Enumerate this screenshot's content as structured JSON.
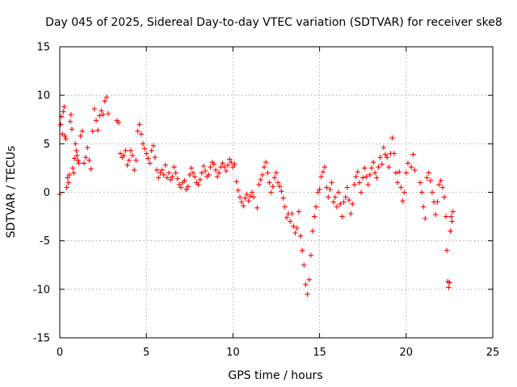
{
  "chart_data": {
    "type": "scatter",
    "title": "Day 045 of 2025, Sidereal Day-to-day VTEC variation (SDTVAR) for receiver ske8",
    "xlabel": "GPS time / hours",
    "ylabel": "SDTVAR / TECUs",
    "xlim": [
      0,
      25
    ],
    "ylim": [
      -15,
      15
    ],
    "xticks": [
      0,
      5,
      10,
      15,
      20,
      25
    ],
    "yticks": [
      -15,
      -10,
      -5,
      0,
      5,
      10,
      15
    ],
    "grid": true,
    "marker": "+",
    "series_color": "#ff0000",
    "series": [
      {
        "name": "SDTVAR",
        "points": [
          [
            0.0,
            -0.2
          ],
          [
            0.05,
            7.0
          ],
          [
            0.1,
            7.8
          ],
          [
            0.15,
            6.0
          ],
          [
            0.2,
            8.3
          ],
          [
            0.25,
            8.8
          ],
          [
            0.3,
            5.8
          ],
          [
            0.35,
            5.5
          ],
          [
            0.4,
            0.5
          ],
          [
            0.45,
            1.5
          ],
          [
            0.5,
            1.0
          ],
          [
            0.55,
            1.8
          ],
          [
            0.6,
            7.3
          ],
          [
            0.65,
            8.0
          ],
          [
            0.7,
            6.5
          ],
          [
            0.75,
            2.5
          ],
          [
            0.8,
            2.0
          ],
          [
            0.85,
            3.5
          ],
          [
            0.9,
            5.0
          ],
          [
            0.95,
            4.3
          ],
          [
            1.0,
            3.8
          ],
          [
            1.05,
            3.3
          ],
          [
            1.1,
            3.0
          ],
          [
            1.2,
            5.8
          ],
          [
            1.3,
            6.3
          ],
          [
            1.4,
            3.0
          ],
          [
            1.5,
            3.6
          ],
          [
            1.6,
            4.6
          ],
          [
            1.7,
            3.3
          ],
          [
            1.8,
            2.4
          ],
          [
            1.9,
            6.3
          ],
          [
            2.0,
            8.6
          ],
          [
            2.1,
            7.4
          ],
          [
            2.2,
            6.4
          ],
          [
            2.3,
            7.9
          ],
          [
            2.4,
            8.4
          ],
          [
            2.5,
            8.0
          ],
          [
            2.6,
            9.4
          ],
          [
            2.7,
            9.8
          ],
          [
            2.8,
            8.1
          ],
          [
            3.3,
            7.4
          ],
          [
            3.4,
            7.2
          ],
          [
            3.5,
            4.0
          ],
          [
            3.6,
            3.6
          ],
          [
            3.7,
            3.8
          ],
          [
            3.8,
            4.3
          ],
          [
            3.9,
            2.8
          ],
          [
            4.0,
            3.3
          ],
          [
            4.1,
            4.3
          ],
          [
            4.2,
            3.8
          ],
          [
            4.3,
            2.3
          ],
          [
            4.4,
            3.3
          ],
          [
            4.5,
            6.3
          ],
          [
            4.6,
            7.0
          ],
          [
            4.7,
            6.0
          ],
          [
            4.8,
            5.0
          ],
          [
            4.9,
            4.5
          ],
          [
            5.0,
            4.0
          ],
          [
            5.1,
            3.5
          ],
          [
            5.2,
            3.0
          ],
          [
            5.3,
            4.3
          ],
          [
            5.4,
            4.8
          ],
          [
            5.5,
            3.6
          ],
          [
            5.6,
            2.3
          ],
          [
            5.7,
            1.5
          ],
          [
            5.8,
            2.0
          ],
          [
            5.9,
            2.3
          ],
          [
            6.0,
            1.8
          ],
          [
            6.1,
            2.8
          ],
          [
            6.2,
            1.5
          ],
          [
            6.3,
            2.0
          ],
          [
            6.4,
            1.3
          ],
          [
            6.5,
            1.6
          ],
          [
            6.6,
            2.6
          ],
          [
            6.7,
            2.0
          ],
          [
            6.8,
            1.4
          ],
          [
            6.9,
            0.8
          ],
          [
            7.0,
            0.5
          ],
          [
            7.1,
            1.0
          ],
          [
            7.2,
            1.2
          ],
          [
            7.3,
            0.3
          ],
          [
            7.4,
            0.6
          ],
          [
            7.5,
            1.8
          ],
          [
            7.6,
            2.5
          ],
          [
            7.7,
            2.0
          ],
          [
            7.8,
            1.6
          ],
          [
            7.9,
            1.0
          ],
          [
            8.0,
            0.8
          ],
          [
            8.1,
            1.3
          ],
          [
            8.2,
            2.0
          ],
          [
            8.3,
            2.7
          ],
          [
            8.4,
            2.2
          ],
          [
            8.5,
            1.6
          ],
          [
            8.6,
            1.8
          ],
          [
            8.7,
            2.6
          ],
          [
            8.8,
            3.1
          ],
          [
            8.9,
            2.9
          ],
          [
            9.0,
            2.3
          ],
          [
            9.1,
            1.6
          ],
          [
            9.2,
            2.0
          ],
          [
            9.3,
            2.6
          ],
          [
            9.4,
            3.0
          ],
          [
            9.5,
            2.6
          ],
          [
            9.6,
            2.2
          ],
          [
            9.7,
            2.8
          ],
          [
            9.8,
            3.4
          ],
          [
            9.9,
            3.1
          ],
          [
            10.0,
            2.6
          ],
          [
            10.1,
            2.9
          ],
          [
            10.2,
            1.1
          ],
          [
            10.3,
            0.2
          ],
          [
            10.4,
            -0.5
          ],
          [
            10.5,
            -1.0
          ],
          [
            10.6,
            -1.4
          ],
          [
            10.7,
            -0.6
          ],
          [
            10.8,
            -0.2
          ],
          [
            10.9,
            -0.9
          ],
          [
            11.0,
            -0.4
          ],
          [
            11.1,
            0.0
          ],
          [
            11.2,
            -0.5
          ],
          [
            11.4,
            -1.6
          ],
          [
            11.5,
            0.8
          ],
          [
            11.6,
            1.3
          ],
          [
            11.7,
            1.8
          ],
          [
            11.8,
            2.6
          ],
          [
            11.9,
            3.1
          ],
          [
            12.0,
            2.0
          ],
          [
            12.1,
            1.0
          ],
          [
            12.2,
            0.0
          ],
          [
            12.3,
            0.6
          ],
          [
            12.4,
            1.5
          ],
          [
            12.5,
            2.0
          ],
          [
            12.6,
            1.0
          ],
          [
            12.7,
            0.6
          ],
          [
            12.8,
            0.1
          ],
          [
            12.9,
            -0.6
          ],
          [
            13.0,
            -1.5
          ],
          [
            13.1,
            -2.6
          ],
          [
            13.2,
            -2.2
          ],
          [
            13.3,
            -3.0
          ],
          [
            13.4,
            -2.2
          ],
          [
            13.5,
            -3.5
          ],
          [
            13.6,
            -4.2
          ],
          [
            13.7,
            -3.7
          ],
          [
            13.8,
            -2.0
          ],
          [
            13.9,
            -4.5
          ],
          [
            14.0,
            -6.0
          ],
          [
            14.1,
            -7.5
          ],
          [
            14.2,
            -9.5
          ],
          [
            14.3,
            -10.5
          ],
          [
            14.4,
            -9.0
          ],
          [
            14.5,
            -6.5
          ],
          [
            14.6,
            -4.0
          ],
          [
            14.7,
            -2.5
          ],
          [
            14.8,
            -1.5
          ],
          [
            14.9,
            0.0
          ],
          [
            15.0,
            0.3
          ],
          [
            15.1,
            1.6
          ],
          [
            15.2,
            2.1
          ],
          [
            15.3,
            2.6
          ],
          [
            15.4,
            0.5
          ],
          [
            15.5,
            -0.5
          ],
          [
            15.6,
            0.3
          ],
          [
            15.7,
            1.0
          ],
          [
            15.8,
            -1.0
          ],
          [
            15.9,
            -0.5
          ],
          [
            16.0,
            -1.5
          ],
          [
            16.1,
            0.0
          ],
          [
            16.2,
            -1.2
          ],
          [
            16.3,
            -2.5
          ],
          [
            16.4,
            -1.0
          ],
          [
            16.5,
            -0.5
          ],
          [
            16.6,
            0.5
          ],
          [
            16.7,
            -0.8
          ],
          [
            16.8,
            -2.2
          ],
          [
            16.9,
            -1.2
          ],
          [
            17.0,
            0.8
          ],
          [
            17.1,
            1.6
          ],
          [
            17.2,
            2.1
          ],
          [
            17.3,
            1.0
          ],
          [
            17.4,
            0.0
          ],
          [
            17.5,
            1.5
          ],
          [
            17.6,
            2.5
          ],
          [
            17.7,
            1.6
          ],
          [
            17.8,
            0.8
          ],
          [
            17.9,
            1.8
          ],
          [
            18.0,
            2.5
          ],
          [
            18.1,
            3.1
          ],
          [
            18.2,
            2.0
          ],
          [
            18.3,
            1.5
          ],
          [
            18.4,
            2.6
          ],
          [
            18.5,
            3.6
          ],
          [
            18.6,
            2.9
          ],
          [
            18.7,
            4.6
          ],
          [
            18.8,
            3.9
          ],
          [
            18.9,
            3.6
          ],
          [
            19.0,
            2.6
          ],
          [
            19.1,
            4.0
          ],
          [
            19.2,
            5.6
          ],
          [
            19.3,
            4.0
          ],
          [
            19.4,
            2.0
          ],
          [
            19.5,
            1.0
          ],
          [
            19.6,
            2.1
          ],
          [
            19.7,
            0.5
          ],
          [
            19.8,
            -0.9
          ],
          [
            19.9,
            0.0
          ],
          [
            20.0,
            2.0
          ],
          [
            20.1,
            3.0
          ],
          [
            20.3,
            2.6
          ],
          [
            20.4,
            3.9
          ],
          [
            20.5,
            2.3
          ],
          [
            20.8,
            1.0
          ],
          [
            20.9,
            0.0
          ],
          [
            21.0,
            -1.5
          ],
          [
            21.1,
            -2.7
          ],
          [
            21.2,
            1.5
          ],
          [
            21.3,
            2.0
          ],
          [
            21.4,
            1.2
          ],
          [
            21.5,
            0.0
          ],
          [
            21.6,
            -1.0
          ],
          [
            21.7,
            -2.3
          ],
          [
            21.8,
            -1.0
          ],
          [
            21.9,
            0.8
          ],
          [
            22.0,
            1.2
          ],
          [
            22.1,
            0.5
          ],
          [
            22.2,
            -0.5
          ],
          [
            22.3,
            -2.5
          ],
          [
            22.35,
            -6.0
          ],
          [
            22.4,
            -9.2
          ],
          [
            22.45,
            -9.8
          ],
          [
            22.5,
            -9.3
          ],
          [
            22.55,
            -4.0
          ],
          [
            22.6,
            -2.5
          ],
          [
            22.65,
            -3.0
          ],
          [
            22.7,
            -2.0
          ]
        ]
      }
    ]
  }
}
